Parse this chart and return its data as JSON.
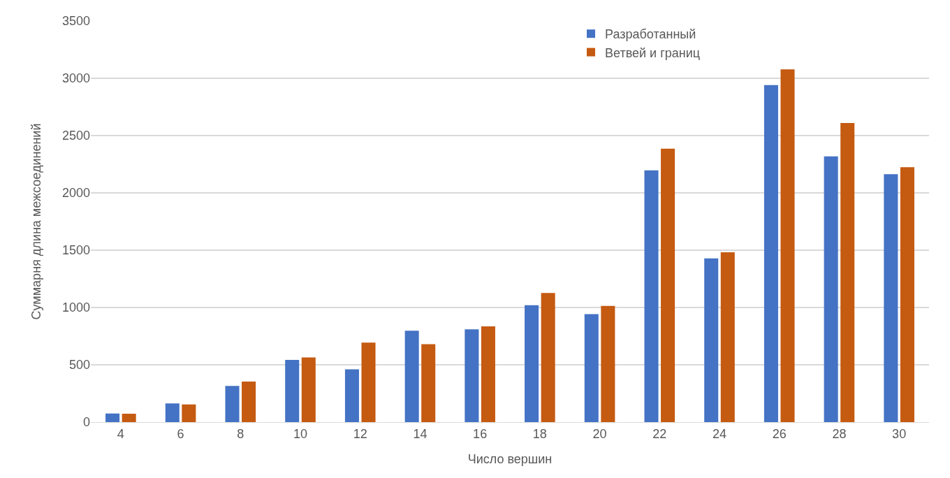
{
  "chart_data": {
    "type": "bar",
    "xlabel": "Число вершин",
    "ylabel": "Суммарня длина межсоединений",
    "categories": [
      "4",
      "6",
      "8",
      "10",
      "12",
      "14",
      "16",
      "18",
      "20",
      "22",
      "24",
      "26",
      "28",
      "30"
    ],
    "series": [
      {
        "name": "Разработанный",
        "color": "#4472c4",
        "values": [
          75,
          163,
          315,
          543,
          460,
          798,
          810,
          1020,
          942,
          2196,
          1429,
          2941,
          2319,
          2163
        ]
      },
      {
        "name": "Ветвей и границ",
        "color": "#c55a11",
        "values": [
          73,
          154,
          353,
          564,
          694,
          680,
          836,
          1127,
          1013,
          2385,
          1482,
          3077,
          2610,
          2224
        ]
      }
    ],
    "ylim": [
      0,
      3500
    ],
    "yticks": [
      0,
      500,
      1000,
      1500,
      2000,
      2500,
      3000,
      3500
    ],
    "grid": "y",
    "legend": "top right"
  }
}
